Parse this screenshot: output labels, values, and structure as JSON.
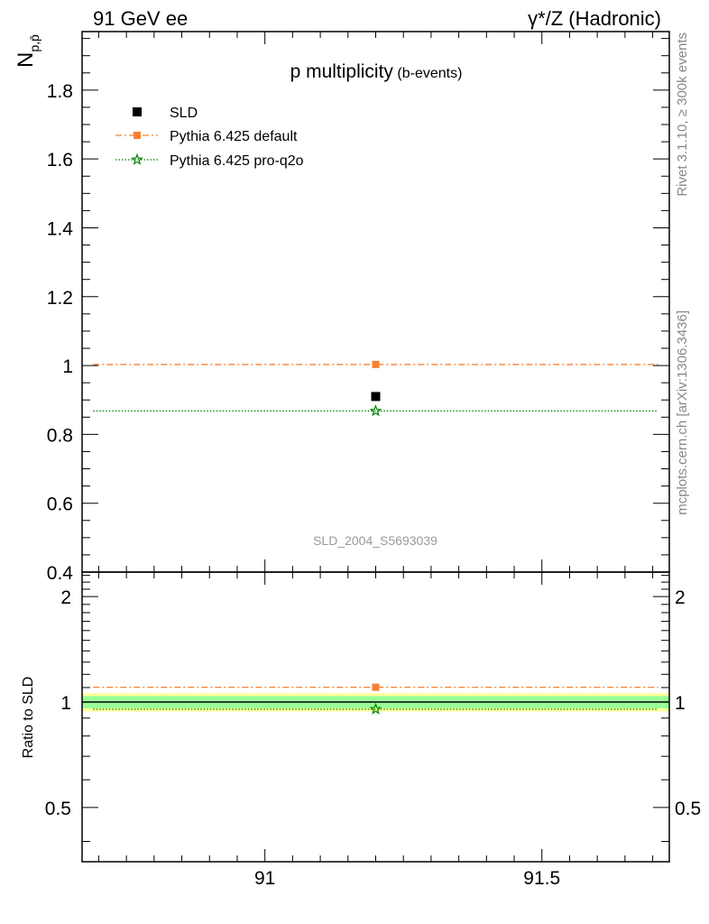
{
  "header": {
    "left": "91 GeV ee",
    "right": "γ*/Z (Hadronic)"
  },
  "side_labels": {
    "rivet": "Rivet 3.1.10, ≥ 300k events",
    "mcplots": "mcplots.cern.ch [arXiv:1306.3436]"
  },
  "colors": {
    "data": "#000000",
    "pythia_default": "#f58233",
    "pythia_proq2o": "#008000",
    "band_inner": "#99ff99",
    "band_outer": "#ffff99",
    "watermark": "#999999"
  },
  "chart_data": [
    {
      "type": "scatter",
      "title": "p multiplicity",
      "subtitle": "(b-events)",
      "ylabel": "N",
      "ylabel_subscript": "p,p̄",
      "watermark": "SLD_2004_S5693039",
      "xlim": [
        90.67,
        91.73
      ],
      "ylim": [
        0.4,
        1.97
      ],
      "yticks": [
        0.4,
        0.6,
        0.8,
        1,
        1.2,
        1.4,
        1.6,
        1.8
      ],
      "ytick_labels": [
        "0.4",
        "0.6",
        "0.8",
        "1",
        "1.2",
        "1.4",
        "1.6",
        "1.8"
      ],
      "legend_position": "top-left",
      "legend": [
        "SLD",
        "Pythia 6.425 default",
        "Pythia 6.425 pro-q2o"
      ],
      "series": [
        {
          "name": "SLD",
          "style": "marker-square",
          "x": [
            91.2
          ],
          "y": [
            0.91
          ]
        },
        {
          "name": "Pythia 6.425 default",
          "style": "dash-dot",
          "x": [
            91.2
          ],
          "y": [
            1.003
          ],
          "xrange": [
            90.69,
            91.71
          ]
        },
        {
          "name": "Pythia 6.425 pro-q2o",
          "style": "dotted",
          "x": [
            91.2
          ],
          "y": [
            0.868
          ],
          "xrange": [
            90.69,
            91.71
          ]
        }
      ]
    },
    {
      "type": "line",
      "ylabel": "Ratio to SLD",
      "xlim": [
        90.67,
        91.73
      ],
      "ylim": [
        0.35,
        2.35
      ],
      "yticks": [
        0.5,
        1,
        2
      ],
      "ytick_labels": [
        "0.5",
        "1",
        "2"
      ],
      "xticks": [
        91,
        91.5
      ],
      "xtick_labels": [
        "91",
        "91.5"
      ],
      "band_inner": [
        0.96,
        1.04
      ],
      "band_outer": [
        0.94,
        1.06
      ],
      "series": [
        {
          "name": "Pythia 6.425 default",
          "x": [
            91.2
          ],
          "y": [
            1.102
          ],
          "xrange": [
            90.69,
            91.71
          ]
        },
        {
          "name": "Pythia 6.425 pro-q2o",
          "x": [
            91.2
          ],
          "y": [
            0.954
          ],
          "xrange": [
            90.69,
            91.71
          ]
        }
      ]
    }
  ]
}
